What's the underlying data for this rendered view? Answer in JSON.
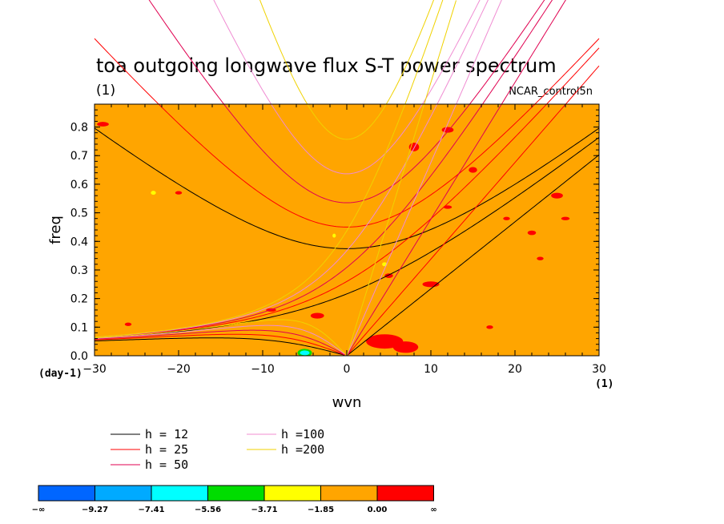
{
  "chart_data": {
    "type": "contour",
    "title": "toa outgoing longwave flux S-T power spectrum",
    "subtitle": "(1)",
    "run_label": "NCAR_control5n",
    "xlabel": "wvn",
    "ylabel": "freq",
    "x_unit": "(1)",
    "y_unit": "(day-1)",
    "xlim": [
      -30,
      30
    ],
    "ylim": [
      0,
      0.88
    ],
    "x_ticks": [
      "-30",
      "-20",
      "-10",
      "0",
      "10",
      "20",
      "30"
    ],
    "y_ticks": [
      "0.0",
      "0.1",
      "0.2",
      "0.3",
      "0.4",
      "0.5",
      "0.6",
      "0.7",
      "0.8"
    ],
    "background_fill": "#ffa500",
    "dispersion_curves": [
      {
        "label": "h = 12",
        "h": 12,
        "color": "#000000"
      },
      {
        "label": "h = 25",
        "h": 25,
        "color": "#ff0000"
      },
      {
        "label": "h = 50",
        "h": 50,
        "color": "#e00050"
      },
      {
        "label": "h =100",
        "h": 100,
        "color": "#f08cd2"
      },
      {
        "label": "h =200",
        "h": 200,
        "color": "#f0d200"
      }
    ],
    "colorbar": {
      "colors": [
        "#0066ff",
        "#00aaff",
        "#00ffff",
        "#00dd00",
        "#ffff00",
        "#ffa500",
        "#ff0000"
      ],
      "labels": [
        "-∞",
        "-9.27",
        "-7.41",
        "-5.56",
        "-3.71",
        "-1.85",
        "0.00",
        "∞"
      ]
    }
  }
}
